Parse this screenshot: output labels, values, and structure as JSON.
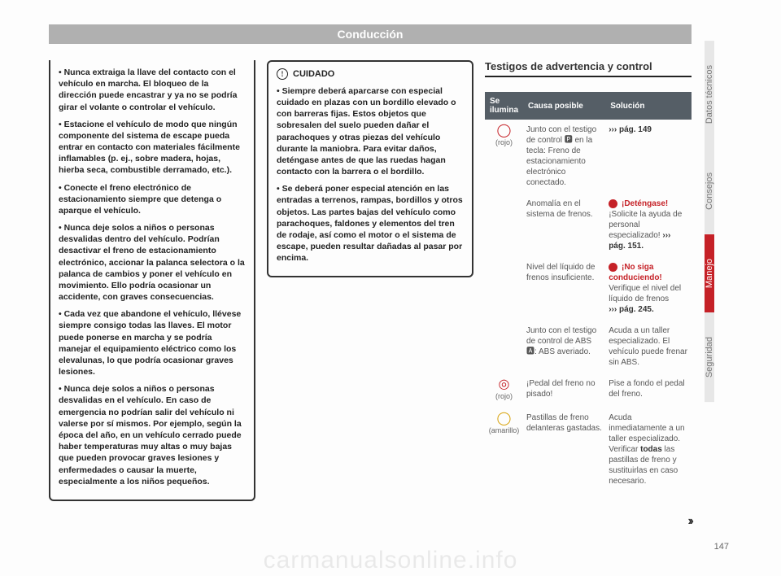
{
  "header": "Conducción",
  "col1": {
    "items": [
      "Nunca extraiga la llave del contacto con el vehículo en marcha. El bloqueo de la dirección puede encastrar y ya no se podría girar el volante o controlar el vehículo.",
      "Estacione el vehículo de modo que ningún componente del sistema de escape pueda entrar en contacto con materiales fácilmente inflamables (p. ej., sobre madera, hojas, hierba seca, combustible derramado, etc.).",
      "Conecte el freno electrónico de estacionamiento siempre que detenga o aparque el vehículo.",
      "Nunca deje solos a niños o personas desvalidas dentro del vehículo. Podrían desactivar el freno de estacionamiento electrónico, accionar la palanca selectora o la palanca de cambios y poner el vehículo en movimiento. Ello podría ocasionar un accidente, con graves consecuencias.",
      "Cada vez que abandone el vehículo, llévese siempre consigo todas las llaves. El motor puede ponerse en marcha y se podría manejar el equipamiento eléctrico como los elevalunas, lo que podría ocasionar graves lesiones.",
      "Nunca deje solos a niños o personas desvalidas en el vehículo. En caso de emergencia no podrían salir del vehículo ni valerse por sí mismos. Por ejemplo, según la época del año, en un vehículo cerrado puede haber temperaturas muy altas o muy bajas que pueden provocar graves lesiones y enfermedades o causar la muerte, especialmente a los niños pequeños."
    ]
  },
  "col2": {
    "title": "CUIDADO",
    "items": [
      "Siempre deberá aparcarse con especial cuidado en plazas con un bordillo elevado o con barreras fijas. Estos objetos que sobresalen del suelo pueden dañar el parachoques y otras piezas del vehículo durante la maniobra. Para evitar daños, deténgase antes de que las ruedas hagan contacto con la barrera o el bordillo.",
      "Se deberá poner especial atención en las entradas a terrenos, rampas, bordillos y otros objetos. Las partes bajas del vehículo como parachoques, faldones y elementos del tren de rodaje, así como el motor o el sistema de escape, pueden resultar dañadas al pasar por encima."
    ]
  },
  "col3": {
    "title": "Testigos de advertencia y control",
    "th1": "Se ilumina",
    "th2": "Causa posible",
    "th3": "Solución",
    "r1c": "Junto con el testigo de control 🅿 en la tecla: Freno de estacionamiento electrónico conectado.",
    "r1s_ref": "››› pág. 149",
    "r2c": "Anomalía en el sistema de frenos.",
    "r2s_title": "¡Deténgase!",
    "r2s_body": "¡Solicite la ayuda de personal especializado! ",
    "r2s_ref": "››› pág. 151.",
    "r3c": "Nivel del líquido de frenos insuficiente.",
    "r3s_title": "¡No siga conduciendo!",
    "r3s_body": "Verifique el nivel del líquido de frenos",
    "r3s_ref": "››› pág. 245.",
    "r4c": "Junto con el testigo de control de ABS 🅰: ABS averiado.",
    "r4s": "Acuda a un taller especializado. El vehículo puede frenar sin ABS.",
    "r5c": "¡Pedal del freno no pisado!",
    "r5s": "Pise a fondo el pedal del freno.",
    "r6c": "Pastillas de freno delanteras gastadas.",
    "r6s_a": "Acuda inmediatamente a un taller especializado. Verificar ",
    "r6s_b": "todas",
    "r6s_c": " las pastillas de freno y sustituirlas en caso necesario.",
    "icon1_sub": "(rojo)",
    "icon2_sub": "(rojo)",
    "icon3_sub": "(amarillo)"
  },
  "tabs": [
    "Datos técnicos",
    "Consejos",
    "Manejo",
    "Seguridad"
  ],
  "pagenum": "147",
  "watermark": "carmanualsonline.info"
}
